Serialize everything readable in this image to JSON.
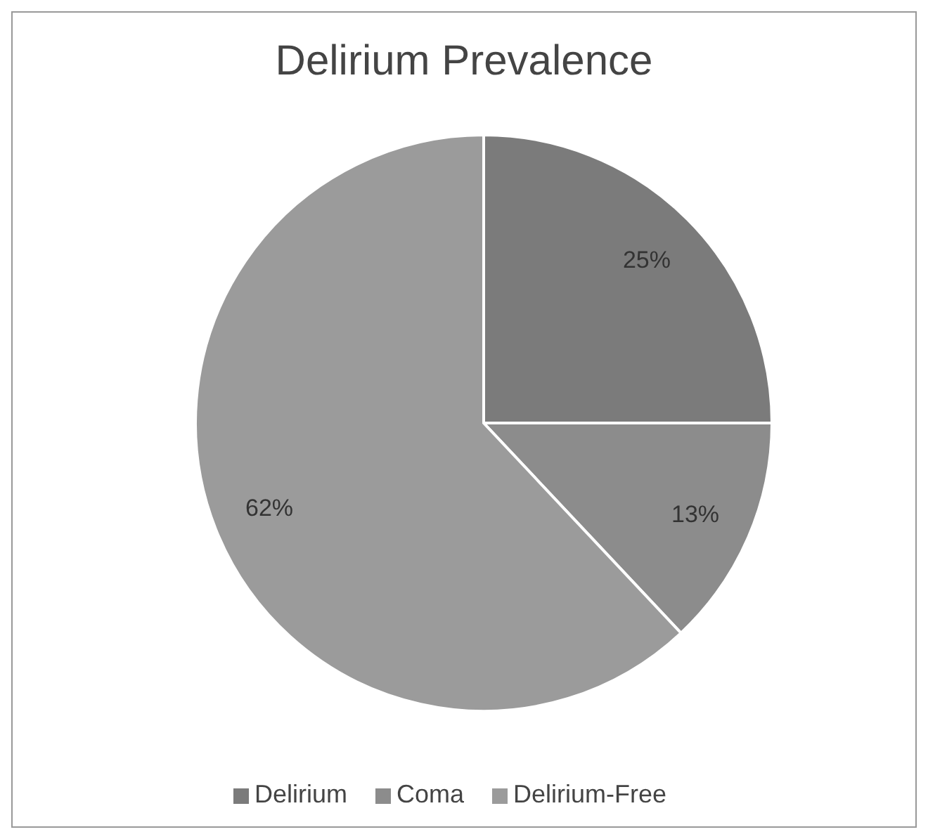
{
  "chart_data": {
    "type": "pie",
    "title": "Delirium Prevalence",
    "categories": [
      "Delirium",
      "Coma",
      "Delirium-Free"
    ],
    "values": [
      25,
      13,
      62
    ],
    "colors": [
      "#7b7b7b",
      "#8c8c8c",
      "#9b9b9b"
    ],
    "value_labels": [
      "25%",
      "13%",
      "62%"
    ],
    "legend": "bottom"
  }
}
